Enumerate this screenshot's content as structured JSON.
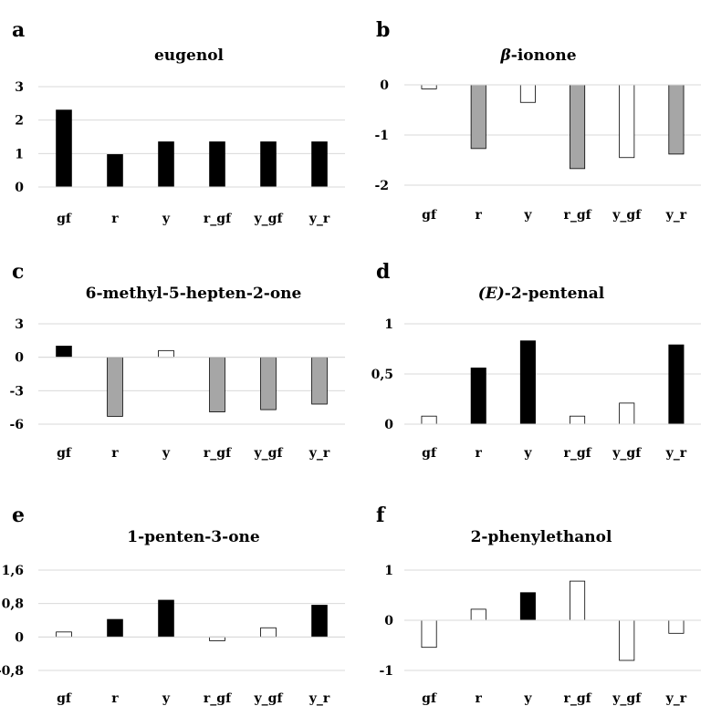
{
  "colors": {
    "black": "#000000",
    "gray": "#a6a6a6",
    "white": "#ffffff",
    "grid": "#d9d9d9"
  },
  "chart_data": [
    {
      "panel": "a",
      "type": "bar",
      "title": "eugenol",
      "categories": [
        "gf",
        "r",
        "y",
        "r_gf",
        "y_gf",
        "y_r"
      ],
      "values": [
        2.3,
        0.97,
        1.35,
        1.35,
        1.35,
        1.35
      ],
      "fills": [
        "black",
        "black",
        "black",
        "black",
        "black",
        "black"
      ],
      "ylim": [
        0,
        3
      ],
      "yticks": [
        0,
        1,
        2,
        3
      ],
      "ytick_labels": [
        "0",
        "1",
        "2",
        "3"
      ],
      "grid": true,
      "xlabel": "",
      "ylabel": ""
    },
    {
      "panel": "b",
      "type": "bar",
      "title_prefix": "β",
      "title_rest": "-ionone",
      "title_prefix_style": "italic",
      "categories": [
        "gf",
        "r",
        "y",
        "r_gf",
        "y_gf",
        "y_r"
      ],
      "values": [
        -0.08,
        -1.27,
        -0.35,
        -1.67,
        -1.45,
        -1.38
      ],
      "fills": [
        "white",
        "gray",
        "white",
        "gray",
        "white",
        "gray"
      ],
      "ylim": [
        -2,
        0
      ],
      "yticks": [
        -2,
        -1,
        0
      ],
      "ytick_labels": [
        "-2",
        "-1",
        "0"
      ],
      "grid": true,
      "xlabel": "",
      "ylabel": ""
    },
    {
      "panel": "c",
      "type": "bar",
      "title": "6-methyl-5-hepten-2-one",
      "categories": [
        "gf",
        "r",
        "y",
        "r_gf",
        "y_gf",
        "y_r"
      ],
      "values": [
        1.0,
        -5.3,
        0.6,
        -4.9,
        -4.7,
        -4.2
      ],
      "fills": [
        "black",
        "gray",
        "white",
        "gray",
        "gray",
        "gray"
      ],
      "ylim": [
        -6,
        3
      ],
      "yticks": [
        -6,
        -3,
        0,
        3
      ],
      "ytick_labels": [
        "-6",
        "-3",
        "0",
        "3"
      ],
      "grid": true,
      "xlabel": "",
      "ylabel": ""
    },
    {
      "panel": "d",
      "type": "bar",
      "title_prefix": "(E)",
      "title_rest": "-2-pentenal",
      "title_prefix_style": "italic",
      "categories": [
        "gf",
        "r",
        "y",
        "r_gf",
        "y_gf",
        "y_r"
      ],
      "values": [
        0.08,
        0.56,
        0.83,
        0.08,
        0.21,
        0.79
      ],
      "fills": [
        "white",
        "black",
        "black",
        "white",
        "white",
        "black"
      ],
      "ylim": [
        0,
        1
      ],
      "yticks": [
        0,
        0.5,
        1
      ],
      "ytick_labels": [
        "0",
        "0,5",
        "1"
      ],
      "grid": true,
      "xlabel": "",
      "ylabel": ""
    },
    {
      "panel": "e",
      "type": "bar",
      "title": "1-penten-3-one",
      "categories": [
        "gf",
        "r",
        "y",
        "r_gf",
        "y_gf",
        "y_r"
      ],
      "values": [
        0.12,
        0.42,
        0.88,
        -0.09,
        0.22,
        0.76
      ],
      "fills": [
        "white",
        "black",
        "black",
        "white",
        "white",
        "black"
      ],
      "ylim": [
        -0.8,
        1.6
      ],
      "yticks": [
        -0.8,
        0,
        0.8,
        1.6
      ],
      "ytick_labels": [
        "-0,8",
        "0",
        "0,8",
        "1,6"
      ],
      "grid": true,
      "xlabel": "",
      "ylabel": ""
    },
    {
      "panel": "f",
      "type": "bar",
      "title": "2-phenylethanol",
      "categories": [
        "gf",
        "r",
        "y",
        "r_gf",
        "y_gf",
        "y_r"
      ],
      "values": [
        -0.54,
        0.22,
        0.55,
        0.78,
        -0.8,
        -0.26
      ],
      "fills": [
        "white",
        "white",
        "black",
        "white",
        "white",
        "white"
      ],
      "ylim": [
        -1,
        1
      ],
      "yticks": [
        -1,
        0,
        1
      ],
      "ytick_labels": [
        "-1",
        "0",
        "1"
      ],
      "grid": true,
      "xlabel": "",
      "ylabel": ""
    }
  ]
}
